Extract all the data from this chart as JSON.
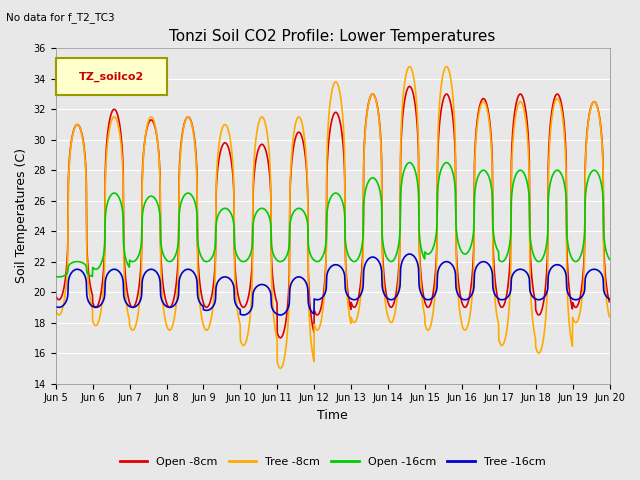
{
  "title": "Tonzi Soil CO2 Profile: Lower Temperatures",
  "no_data_text": "No data for f_T2_TC3",
  "legend_box_text": "TZ_soilco2",
  "xlabel": "Time",
  "ylabel": "Soil Temperatures (C)",
  "ylim": [
    14,
    36
  ],
  "yticks": [
    14,
    16,
    18,
    20,
    22,
    24,
    26,
    28,
    30,
    32,
    34,
    36
  ],
  "xtick_labels": [
    "Jun 5",
    "Jun 6",
    "Jun 7",
    "Jun 8",
    "Jun 9",
    "Jun 10",
    "Jun 11",
    "Jun 12",
    "Jun 13",
    "Jun 14",
    "Jun 15",
    "Jun 16",
    "Jun 17",
    "Jun 18",
    "Jun 19",
    "Jun 20"
  ],
  "line_colors": [
    "#dd0000",
    "#ffaa00",
    "#00cc00",
    "#0000cc"
  ],
  "line_labels": [
    "Open -8cm",
    "Tree -8cm",
    "Open -16cm",
    "Tree -16cm"
  ],
  "bg_color": "#e8e8e8",
  "grid_color": "#ffffff",
  "n_days": 15,
  "ppd": 144,
  "open8_peaks": [
    31.0,
    32.0,
    31.3,
    31.5,
    29.8,
    29.7,
    30.5,
    31.8,
    33.0,
    33.5,
    33.0,
    32.7,
    33.0,
    33.0,
    32.5
  ],
  "open8_troughs": [
    19.5,
    19.0,
    19.0,
    19.0,
    19.0,
    19.0,
    17.0,
    18.5,
    19.0,
    19.0,
    19.0,
    19.0,
    19.0,
    18.5,
    19.0
  ],
  "tree8_peaks": [
    31.0,
    31.5,
    31.5,
    31.5,
    31.0,
    31.5,
    31.5,
    33.8,
    33.0,
    34.8,
    34.8,
    32.5,
    32.5,
    32.7,
    32.5
  ],
  "tree8_troughs": [
    18.5,
    17.8,
    17.5,
    17.5,
    17.5,
    16.5,
    15.0,
    17.5,
    18.0,
    18.0,
    17.5,
    17.5,
    16.5,
    16.0,
    18.0
  ],
  "open16_peaks": [
    22.0,
    26.5,
    26.3,
    26.5,
    25.5,
    25.5,
    25.5,
    26.5,
    27.5,
    28.5,
    28.5,
    28.0,
    28.0,
    28.0,
    28.0
  ],
  "open16_troughs": [
    21.0,
    21.5,
    22.0,
    22.0,
    22.0,
    22.0,
    22.0,
    22.0,
    22.0,
    22.0,
    22.5,
    22.5,
    22.0,
    22.0,
    22.0
  ],
  "tree16_peaks": [
    21.5,
    21.5,
    21.5,
    21.5,
    21.0,
    20.5,
    21.0,
    21.8,
    22.3,
    22.5,
    22.0,
    22.0,
    21.5,
    21.8,
    21.5
  ],
  "tree16_troughs": [
    19.0,
    19.0,
    19.0,
    19.0,
    18.8,
    18.5,
    18.5,
    19.5,
    19.5,
    19.5,
    19.5,
    19.5,
    19.5,
    19.5,
    19.5
  ],
  "peak_hour": 14,
  "sharpness": 3.0,
  "figsize": [
    6.4,
    4.8
  ],
  "dpi": 100,
  "title_fontsize": 11,
  "label_fontsize": 9,
  "tick_fontsize": 7,
  "legend_fontsize": 8,
  "linewidth": 1.2
}
